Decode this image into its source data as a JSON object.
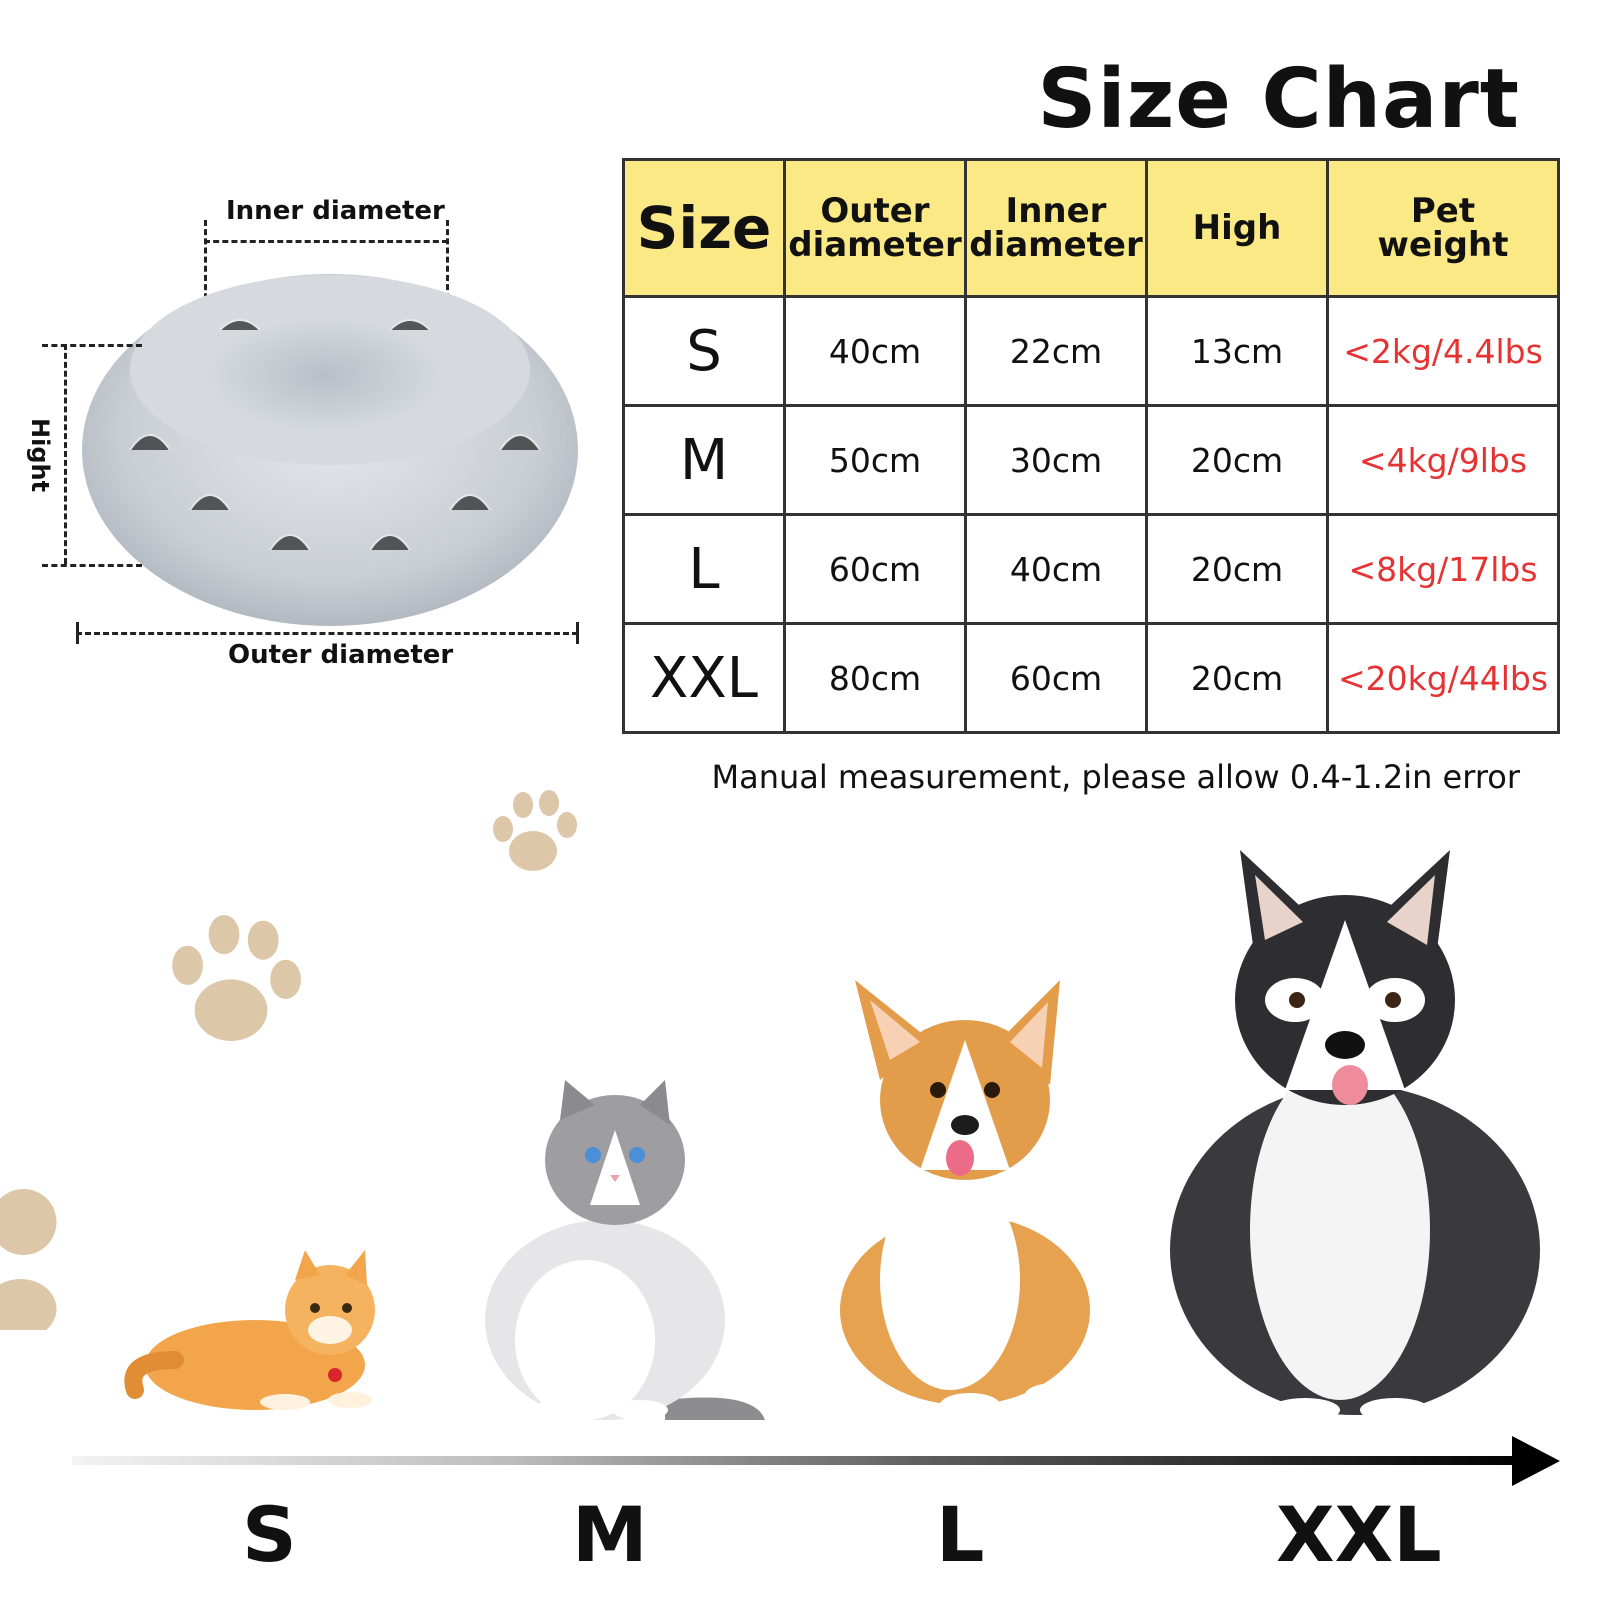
{
  "title": "Size Chart",
  "diagram": {
    "inner_label": "Inner diameter",
    "outer_label": "Outer diameter",
    "height_label": "Hight"
  },
  "table": {
    "headers": {
      "size": "Size",
      "outer_line1": "Outer",
      "outer_line2": "diameter",
      "inner_line1": "Inner",
      "inner_line2": "diameter",
      "high": "High",
      "weight_line1": "Pet",
      "weight_line2": "weight"
    },
    "rows": [
      {
        "size": "S",
        "outer": "40cm",
        "inner": "22cm",
        "high": "13cm",
        "weight": "<2kg/4.4lbs"
      },
      {
        "size": "M",
        "outer": "50cm",
        "inner": "30cm",
        "high": "20cm",
        "weight": "<4kg/9lbs"
      },
      {
        "size": "L",
        "outer": "60cm",
        "inner": "40cm",
        "high": "20cm",
        "weight": "<8kg/17lbs"
      },
      {
        "size": "XXL",
        "outer": "80cm",
        "inner": "60cm",
        "high": "20cm",
        "weight": "<20kg/44lbs"
      }
    ]
  },
  "note": "Manual measurement, please allow 0.4-1.2in error",
  "scale": [
    "S",
    "M",
    "L",
    "XXL"
  ],
  "colors": {
    "header_bg": "#fae985",
    "weight_text": "#e53333",
    "paw": "#dcc7a9",
    "bed_fur": "#c9ced4"
  },
  "icons": [
    "paw-print-icon",
    "arrow-right-icon"
  ]
}
